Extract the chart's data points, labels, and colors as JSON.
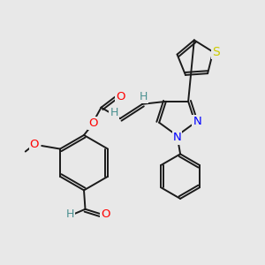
{
  "background_color": "#e8e8e8",
  "atom_colors": {
    "O": "#ff0000",
    "N": "#0000ff",
    "S": "#cccc00",
    "C": "#1a1a1a",
    "H": "#4a9090"
  },
  "bond_color": "#1a1a1a",
  "label_fontsize": 9.5,
  "lw": 1.4
}
